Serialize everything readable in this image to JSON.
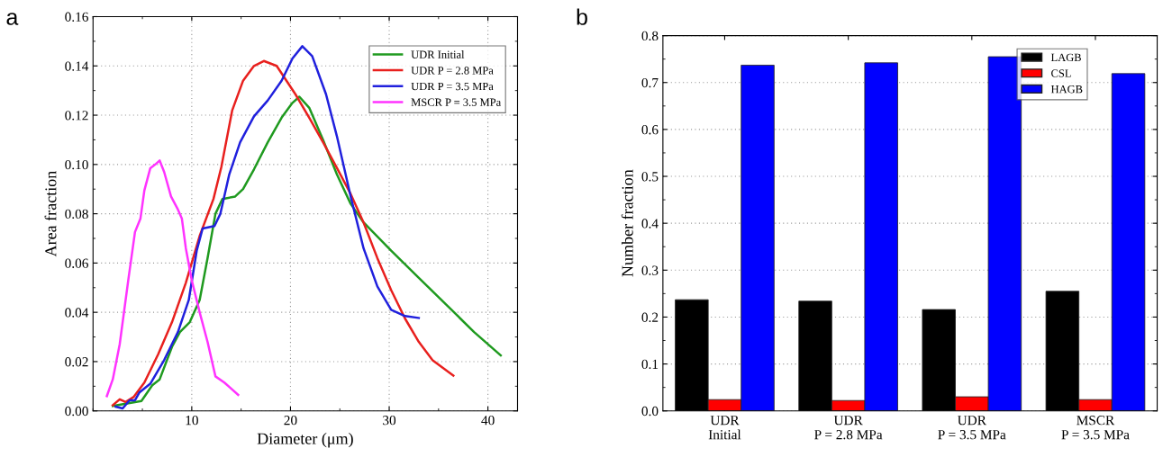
{
  "chart_data": [
    {
      "type": "line",
      "annotations": [
        "a"
      ],
      "xlabel": "Diameter (μm)",
      "ylabel": "Area fraction",
      "xlim": [
        0,
        43
      ],
      "ylim": [
        0,
        0.16
      ],
      "xticks": [
        10,
        20,
        30,
        40
      ],
      "yticks": [
        {
          "value": 0,
          "label": "0.00"
        },
        {
          "value": 0.02,
          "label": "0.02"
        },
        {
          "value": 0.04,
          "label": "0.04"
        },
        {
          "value": 0.06,
          "label": "0.06"
        },
        {
          "value": 0.08,
          "label": "0.08"
        },
        {
          "value": 0.1,
          "label": "0.10"
        },
        {
          "value": 0.12,
          "label": "0.12"
        },
        {
          "value": 0.14,
          "label": "0.14"
        },
        {
          "value": 0.16,
          "label": "0.16"
        }
      ],
      "grid": true,
      "legend": "top right",
      "marker": "none",
      "line_style": "solid",
      "series": [
        {
          "name": "UDR Initial",
          "color": "#1f9a1f",
          "x": [
            2.0,
            4.9,
            6.0,
            6.75,
            8.0,
            8.8,
            9.8,
            10.8,
            11.6,
            12.4,
            13.1,
            14.4,
            15.2,
            16.3,
            17.7,
            19.1,
            20.2,
            20.9,
            21.9,
            23.3,
            24.7,
            26.1,
            27.4,
            30.2,
            33.0,
            35.8,
            38.6,
            41.3
          ],
          "values": [
            0.002,
            0.004,
            0.0104,
            0.0128,
            0.026,
            0.032,
            0.036,
            0.045,
            0.062,
            0.08,
            0.086,
            0.087,
            0.09,
            0.098,
            0.109,
            0.119,
            0.125,
            0.1275,
            0.123,
            0.11,
            0.096,
            0.084,
            0.0765,
            0.065,
            0.054,
            0.043,
            0.032,
            0.0225
          ]
        },
        {
          "name": "UDR P = 2.8 MPa",
          "color": "#e8201e",
          "x": [
            2.0,
            2.7,
            3.3,
            4.1,
            5.2,
            6.6,
            8.0,
            9.4,
            10.8,
            12.2,
            13.0,
            14.1,
            15.2,
            16.3,
            17.3,
            18.6,
            20.5,
            21.9,
            23.3,
            24.7,
            26.1,
            27.4,
            28.8,
            30.2,
            31.6,
            33.0,
            34.4,
            36.5
          ],
          "values": [
            0.0023,
            0.0047,
            0.0036,
            0.0056,
            0.0115,
            0.023,
            0.036,
            0.052,
            0.071,
            0.086,
            0.099,
            0.122,
            0.134,
            0.14,
            0.142,
            0.14,
            0.1285,
            0.119,
            0.109,
            0.0986,
            0.088,
            0.0765,
            0.062,
            0.049,
            0.0375,
            0.028,
            0.0205,
            0.0143
          ]
        },
        {
          "name": "UDR P = 3.5 MPa",
          "color": "#2020dd",
          "x": [
            2.3,
            3.0,
            3.7,
            4.25,
            4.7,
            5.8,
            7.2,
            8.6,
            9.7,
            10.5,
            11.1,
            12.3,
            12.9,
            13.8,
            14.9,
            16.3,
            17.7,
            19.1,
            20.2,
            21.2,
            22.2,
            23.6,
            24.7,
            26.1,
            27.4,
            28.8,
            30.2,
            31.6,
            33.0
          ],
          "values": [
            0.0017,
            0.001,
            0.0043,
            0.0043,
            0.0075,
            0.011,
            0.0206,
            0.032,
            0.045,
            0.065,
            0.074,
            0.075,
            0.08,
            0.096,
            0.109,
            0.1195,
            0.126,
            0.134,
            0.143,
            0.148,
            0.144,
            0.1285,
            0.1115,
            0.087,
            0.066,
            0.0505,
            0.041,
            0.0385,
            0.0377
          ]
        },
        {
          "name": "MSCR P = 3.5 MPa",
          "color": "#ff33ff",
          "x": [
            1.4,
            2.0,
            2.7,
            3.6,
            4.25,
            4.8,
            5.2,
            5.8,
            6.3,
            6.75,
            7.2,
            7.9,
            8.6,
            9.0,
            9.4,
            10.0,
            10.8,
            11.6,
            12.4,
            13.3,
            14.7
          ],
          "values": [
            0.006,
            0.0128,
            0.027,
            0.054,
            0.0726,
            0.078,
            0.0895,
            0.0985,
            0.1,
            0.1016,
            0.097,
            0.087,
            0.0817,
            0.078,
            0.066,
            0.053,
            0.04,
            0.028,
            0.014,
            0.0115,
            0.0065
          ]
        }
      ]
    },
    {
      "type": "bar",
      "annotations": [
        "b"
      ],
      "ylabel": "Number fraction",
      "categories": [
        "UDR\nInitial",
        "UDR\nP = 2.8 MPa",
        "UDR\nP = 3.5 MPa",
        "MSCR\nP = 3.5 MPa"
      ],
      "ylim": [
        0,
        0.8
      ],
      "yticks": [
        {
          "value": 0,
          "label": "0.0"
        },
        0.1,
        0.2,
        0.3,
        0.4,
        0.5,
        0.6,
        0.7,
        0.8
      ],
      "grid": "y",
      "legend": "top right",
      "series": [
        {
          "name": "LAGB",
          "color": "#000000",
          "values": [
            0.237,
            0.234,
            0.216,
            0.255
          ]
        },
        {
          "name": "CSL",
          "color": "#ff0000",
          "values": [
            0.024,
            0.022,
            0.03,
            0.024
          ]
        },
        {
          "name": "HAGB",
          "color": "#0000ff",
          "values": [
            0.737,
            0.742,
            0.755,
            0.719
          ]
        }
      ]
    }
  ]
}
